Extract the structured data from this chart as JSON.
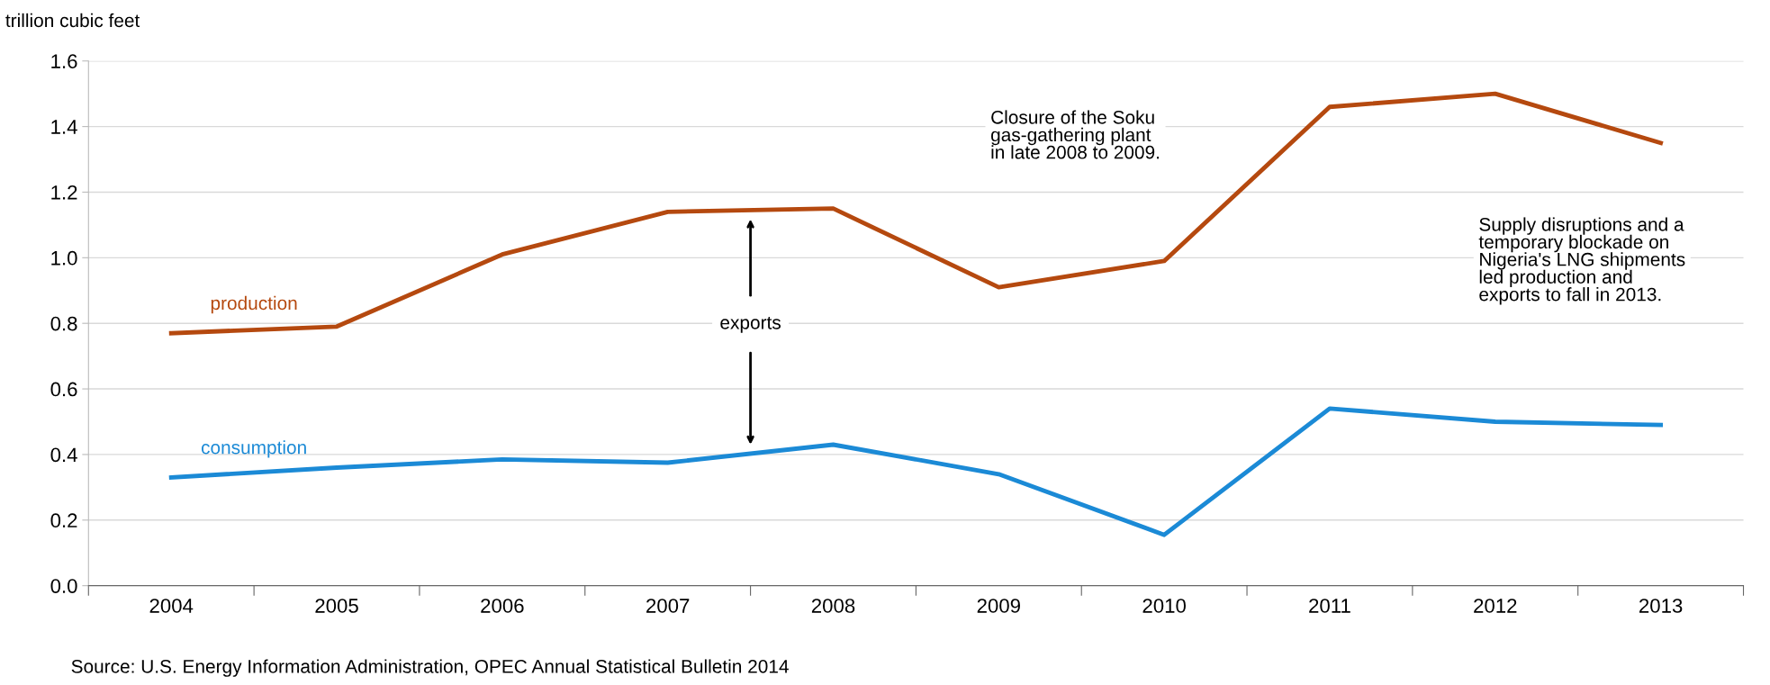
{
  "chart_data": {
    "type": "line",
    "ylabel": "trillion cubic feet",
    "categories": [
      "2004",
      "2005",
      "2006",
      "2007",
      "2008",
      "2009",
      "2010",
      "2011",
      "2012",
      "2013"
    ],
    "series": [
      {
        "name": "production",
        "color": "#b5490f",
        "values": [
          0.77,
          0.79,
          1.01,
          1.14,
          1.15,
          0.91,
          0.99,
          1.46,
          1.5,
          1.35
        ]
      },
      {
        "name": "consumption",
        "color": "#1b8ad6",
        "values": [
          0.33,
          0.36,
          0.385,
          0.375,
          0.43,
          0.34,
          0.155,
          0.54,
          0.5,
          0.49
        ]
      }
    ],
    "ylim": [
      0,
      1.6
    ],
    "yticks": [
      {
        "value": 0,
        "label": "0.0"
      },
      {
        "value": 0.2,
        "label": "0.2"
      },
      {
        "value": 0.4,
        "label": "0.4"
      },
      {
        "value": 0.6,
        "label": "0.6"
      },
      {
        "value": 0.8,
        "label": "0.8"
      },
      {
        "value": 1.0,
        "label": "1.0"
      },
      {
        "value": 1.2,
        "label": "1.2"
      },
      {
        "value": 1.4,
        "label": "1.4"
      },
      {
        "value": 1.6,
        "label": "1.6"
      }
    ],
    "grid": "y",
    "marker": "none",
    "line_style": "solid",
    "annotations": [
      "exports",
      "Closure of the Soku\ngas-gathering plant\nin late 2008 to 2009.",
      "Supply disruptions and a\ntemporary blockade on\nNigeria's LNG shipments\nled production and\nexports to fall in 2013.",
      "Source: U.S. Energy Information Administration, OPEC Annual Statistical Bulletin 2014"
    ]
  }
}
